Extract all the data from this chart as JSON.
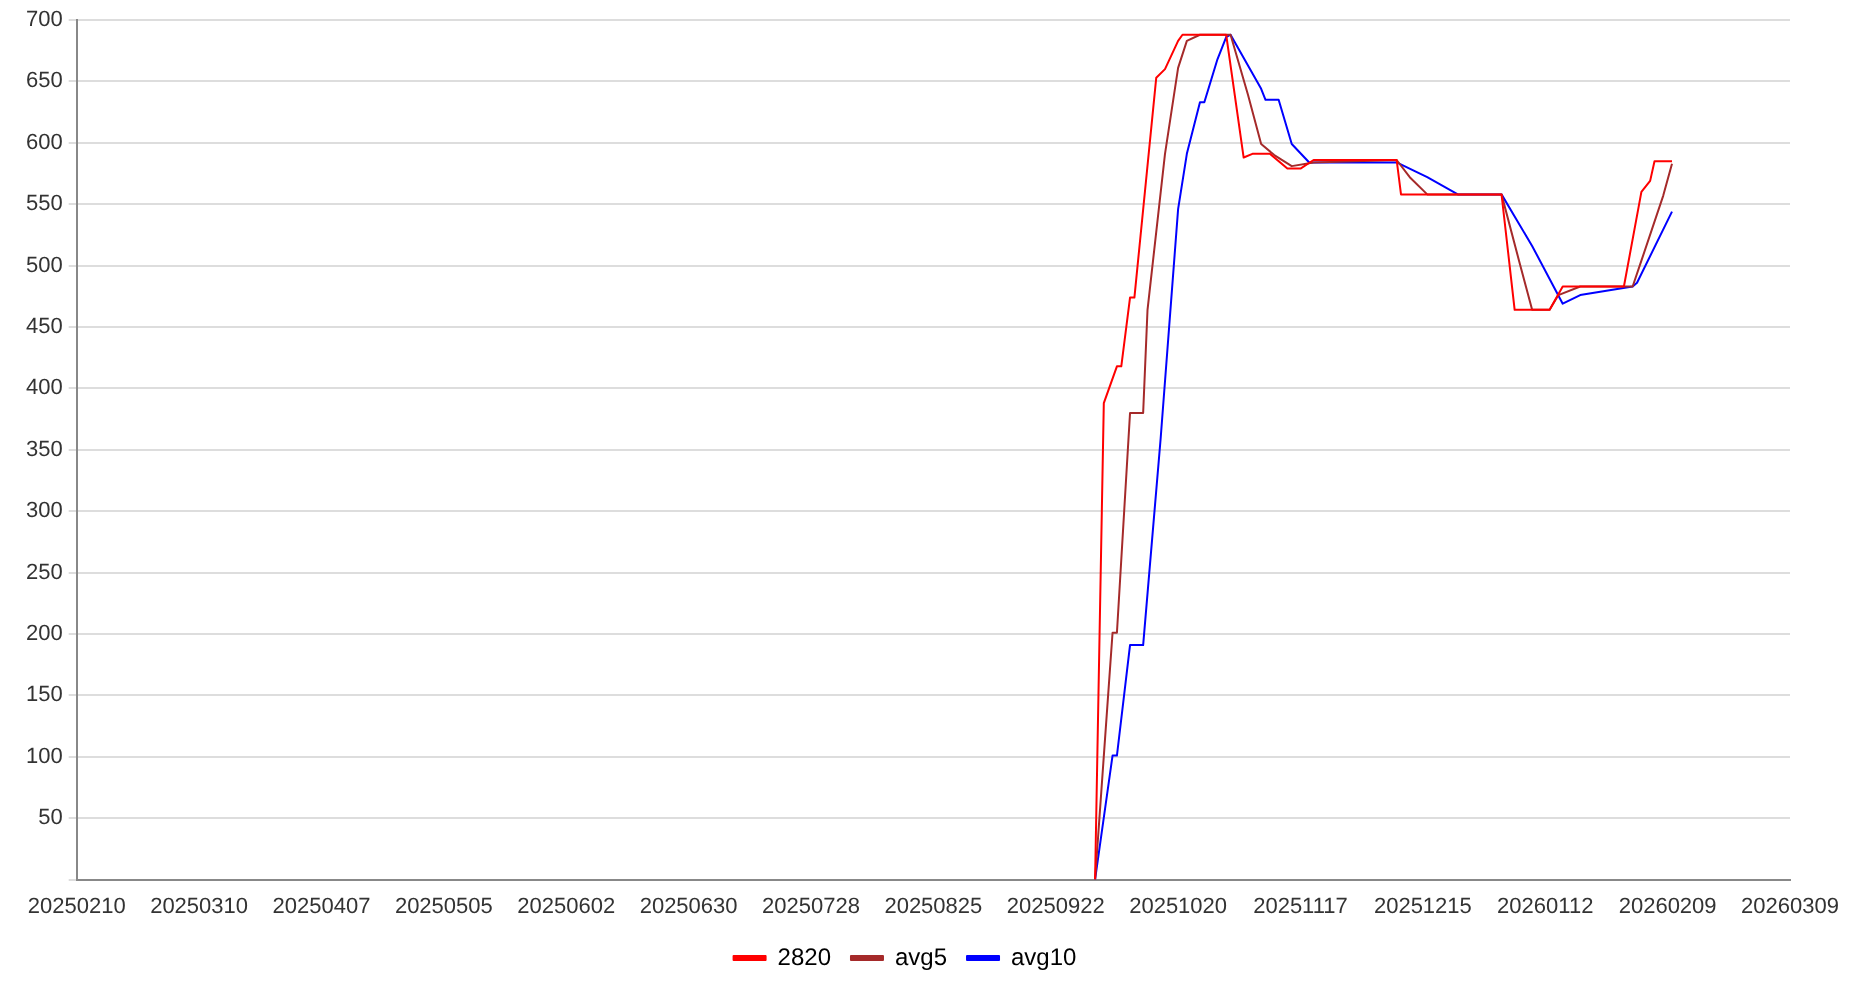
{
  "chart_data": {
    "type": "line",
    "xlim": [
      "2025-02-10",
      "2026-03-09"
    ],
    "xticks": [
      {
        "value": "2025-02-10",
        "label": "20250210"
      },
      {
        "value": "2025-03-10",
        "label": "20250310"
      },
      {
        "value": "2025-04-07",
        "label": "20250407"
      },
      {
        "value": "2025-05-05",
        "label": "20250505"
      },
      {
        "value": "2025-06-02",
        "label": "20250602"
      },
      {
        "value": "2025-06-30",
        "label": "20250630"
      },
      {
        "value": "2025-07-28",
        "label": "20250728"
      },
      {
        "value": "2025-08-25",
        "label": "20250825"
      },
      {
        "value": "2025-09-22",
        "label": "20250922"
      },
      {
        "value": "2025-10-20",
        "label": "20251020"
      },
      {
        "value": "2025-11-17",
        "label": "20251117"
      },
      {
        "value": "2025-12-15",
        "label": "20251215"
      },
      {
        "value": "2026-01-12",
        "label": "20260112"
      },
      {
        "value": "2026-02-09",
        "label": "20260209"
      },
      {
        "value": "2026-03-09",
        "label": "20260309"
      }
    ],
    "ylim": [
      0,
      700
    ],
    "yticks": [
      {
        "value": 0,
        "label": null
      },
      50,
      100,
      150,
      200,
      250,
      300,
      350,
      400,
      450,
      500,
      550,
      600,
      650,
      700
    ],
    "grid": "y",
    "legend": "bottom",
    "marker": "none",
    "line_style": "solid",
    "series": [
      {
        "name": "2820",
        "color": "#ff0000",
        "x": [
          "2025-10-01",
          "2025-10-03",
          "2025-10-06",
          "2025-10-07",
          "2025-10-09",
          "2025-10-10",
          "2025-10-15",
          "2025-10-17",
          "2025-10-20",
          "2025-10-21",
          "2025-10-31",
          "2025-11-04",
          "2025-11-06",
          "2025-11-10",
          "2025-11-14",
          "2025-11-17",
          "2025-11-20",
          "2025-12-09",
          "2025-12-10",
          "2026-01-02",
          "2026-01-05",
          "2026-01-13",
          "2026-01-16",
          "2026-01-30",
          "2026-02-03",
          "2026-02-05",
          "2026-02-06",
          "2026-02-10"
        ],
        "values": [
          0,
          388,
          418,
          418,
          474,
          474,
          653,
          660,
          683,
          688,
          688,
          588,
          591,
          591,
          579,
          579,
          586,
          586,
          558,
          558,
          464,
          464,
          483,
          483,
          560,
          569,
          585,
          585
        ]
      },
      {
        "name": "avg5",
        "color": "#a52a2a",
        "x": [
          "2025-10-01",
          "2025-10-05",
          "2025-10-06",
          "2025-10-09",
          "2025-10-12",
          "2025-10-13",
          "2025-10-17",
          "2025-10-20",
          "2025-10-22",
          "2025-10-25",
          "2025-11-01",
          "2025-11-05",
          "2025-11-08",
          "2025-11-11",
          "2025-11-15",
          "2025-11-20",
          "2025-12-09",
          "2025-12-12",
          "2025-12-16",
          "2026-01-02",
          "2026-01-06",
          "2026-01-09",
          "2026-01-13",
          "2026-01-15",
          "2026-01-20",
          "2026-02-01",
          "2026-02-03",
          "2026-02-08",
          "2026-02-10"
        ],
        "values": [
          0,
          201,
          201,
          380,
          380,
          464,
          591,
          661,
          683,
          688,
          688,
          639,
          599,
          590,
          581,
          584,
          586,
          572,
          558,
          558,
          504,
          464,
          464,
          476,
          483,
          483,
          504,
          557,
          583
        ]
      },
      {
        "name": "avg10",
        "color": "#0000ff",
        "x": [
          "2025-10-01",
          "2025-10-05",
          "2025-10-06",
          "2025-10-09",
          "2025-10-12",
          "2025-10-16",
          "2025-10-20",
          "2025-10-22",
          "2025-10-25",
          "2025-10-26",
          "2025-10-29",
          "2025-10-31",
          "2025-11-01",
          "2025-11-08",
          "2025-11-09",
          "2025-11-12",
          "2025-11-15",
          "2025-11-19",
          "2025-11-20",
          "2025-12-09",
          "2025-12-16",
          "2025-12-23",
          "2026-01-02",
          "2026-01-09",
          "2026-01-16",
          "2026-01-20",
          "2026-02-01",
          "2026-02-02",
          "2026-02-10"
        ],
        "values": [
          0,
          101,
          101,
          191,
          191,
          359,
          546,
          591,
          633,
          633,
          668,
          686,
          688,
          644,
          635,
          635,
          599,
          584,
          584,
          584,
          572,
          558,
          558,
          516,
          469,
          476,
          483,
          486,
          544
        ]
      }
    ]
  }
}
